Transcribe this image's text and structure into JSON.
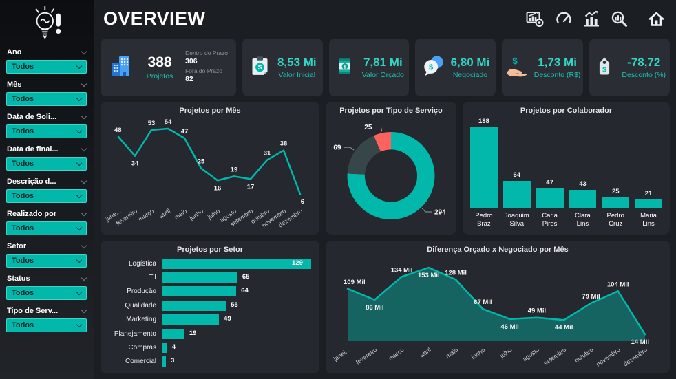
{
  "theme": {
    "accent": "#01B8AA",
    "page_bg": "#1b1e23",
    "panel_bg": "#25282e",
    "card_bg": "#2a2d34",
    "donut_gray": "#374649",
    "donut_red": "#FD625E",
    "value_teal": "#33d4c2",
    "icon_blue": "#3f96f2"
  },
  "header": {
    "title": "OVERVIEW",
    "icons": [
      "report-icon",
      "speedometer-icon",
      "bar-chart-icon",
      "search-chart-icon",
      "home-icon"
    ]
  },
  "sidebar": {
    "logo": "lightbulb-exclamation",
    "filters": [
      {
        "label": "Ano",
        "value": "Todos"
      },
      {
        "label": "Mês",
        "value": "Todos"
      },
      {
        "label": "Data de Soli...",
        "value": "Todos"
      },
      {
        "label": "Data de final...",
        "value": "Todos"
      },
      {
        "label": "Descrição d...",
        "value": "Todos"
      },
      {
        "label": "Realizado por",
        "value": "Todos"
      },
      {
        "label": "Setor",
        "value": "Todos"
      },
      {
        "label": "Status",
        "value": "Todos"
      },
      {
        "label": "Tipo de Serv...",
        "value": "Todos"
      }
    ]
  },
  "kpis": [
    {
      "icon": "buildings-icon",
      "value": "388",
      "label": "Projetos",
      "breakdown": [
        {
          "label": "Dentro do Prazo",
          "value": "306"
        },
        {
          "label": "Fora do Prazo",
          "value": "82"
        }
      ]
    },
    {
      "icon": "clipboard-dollar-icon",
      "value": "8,53 Mi",
      "label": "Valor Inicial"
    },
    {
      "icon": "money-can-icon",
      "value": "7,81 Mi",
      "label": "Valor Orçado"
    },
    {
      "icon": "chat-dollar-icon",
      "value": "6,80 Mi",
      "label": "Negociado"
    },
    {
      "icon": "hand-dollar-icon",
      "value": "1,73 Mi",
      "label": "Desconto (R$)"
    },
    {
      "icon": "price-tag-icon",
      "value": "-78,72",
      "label": "Desconto (%)"
    }
  ],
  "chart_data": [
    {
      "type": "line",
      "title": "Projetos por Mês",
      "categories": [
        "jane...",
        "fevereiro",
        "março",
        "abril",
        "maio",
        "junho",
        "julho",
        "agosto",
        "setembro",
        "outubro",
        "novembro",
        "dezembro"
      ],
      "values": [
        48,
        34,
        53,
        54,
        47,
        25,
        16,
        19,
        17,
        31,
        38,
        6
      ],
      "ylim": [
        0,
        54
      ],
      "grid": false,
      "line_color": "#01B8AA"
    },
    {
      "type": "pie",
      "title": "Projetos por Tipo de Serviço",
      "donut": true,
      "values": [
        294,
        69,
        25
      ],
      "colors": [
        "#01B8AA",
        "#374649",
        "#FD625E"
      ],
      "total": 388
    },
    {
      "type": "bar",
      "title": "Projetos por Colaborador",
      "categories": [
        "Pedro Braz",
        "Joaquim Silva",
        "Carla Pires",
        "Clara Lins",
        "Pedro Cruz",
        "Maria Lins"
      ],
      "values": [
        188,
        64,
        47,
        43,
        25,
        21
      ],
      "ylim": [
        0,
        188
      ],
      "bar_color": "#01B8AA"
    },
    {
      "type": "bar",
      "orientation": "horizontal",
      "title": "Projetos por Setor",
      "categories": [
        "Logística",
        "T.I",
        "Produção",
        "Qualidade",
        "Marketing",
        "Planejamento",
        "Compras",
        "Comercial"
      ],
      "values": [
        129,
        65,
        64,
        55,
        49,
        19,
        4,
        3
      ],
      "xlim": [
        0,
        129
      ],
      "bar_color": "#01B8AA"
    },
    {
      "type": "area",
      "title": "Diferença Orçado x Negociado por Mês",
      "categories": [
        "janei...",
        "fevereiro",
        "março",
        "abril",
        "maio",
        "junho",
        "julho",
        "agosto",
        "setembro",
        "outubro",
        "novembro",
        "dezembro"
      ],
      "values": [
        109,
        86,
        134,
        153,
        128,
        67,
        46,
        49,
        44,
        79,
        104,
        14
      ],
      "label_suffix": " Mil",
      "ylim": [
        0,
        153
      ],
      "line_color": "#01B8AA",
      "fill_opacity": 0.42
    }
  ]
}
